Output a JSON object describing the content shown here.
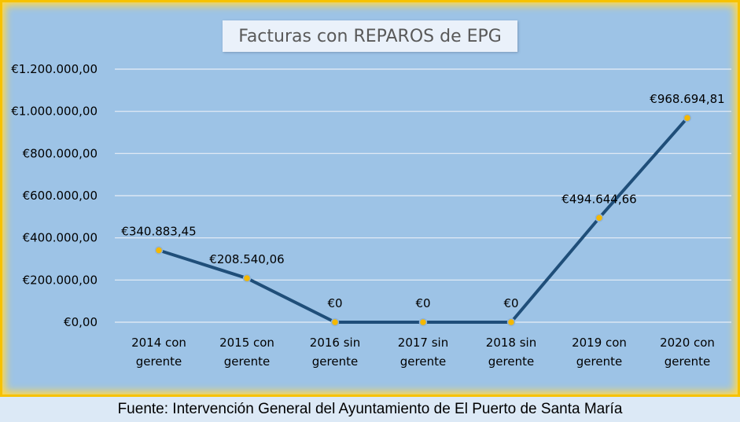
{
  "chart_data": {
    "type": "line",
    "title": "Facturas con REPAROS de EPG",
    "categories": [
      [
        "2014 con",
        "gerente"
      ],
      [
        "2015 con",
        "gerente"
      ],
      [
        "2016 sin",
        "gerente"
      ],
      [
        "2017  sin",
        "gerente"
      ],
      [
        "2018 sin",
        "gerente"
      ],
      [
        "2019 con",
        "gerente"
      ],
      [
        "2020 con",
        "gerente"
      ]
    ],
    "values": [
      340883.45,
      208540.06,
      0,
      0,
      0,
      494644.66,
      968694.81
    ],
    "data_labels": [
      "€340.883,45",
      "€208.540,06",
      "€0",
      "€0",
      "€0",
      "€494.644,66",
      "€968.694,81"
    ],
    "y_ticks": [
      0,
      200000,
      400000,
      600000,
      800000,
      1000000,
      1200000
    ],
    "y_tick_labels": [
      "€0,00",
      "€200.000,00",
      "€400.000,00",
      "€600.000,00",
      "€800.000,00",
      "€1.000.000,00",
      "€1.200.000,00"
    ],
    "ylim": [
      0,
      1200000
    ],
    "grid": true,
    "line_color": "#1f4e79",
    "marker_color": "#f5b800",
    "background_color": "#9dc3e6",
    "border_color": "#f7c200"
  },
  "footer": {
    "source": "Fuente: Intervención General del Ayuntamiento de El Puerto de Santa María"
  }
}
